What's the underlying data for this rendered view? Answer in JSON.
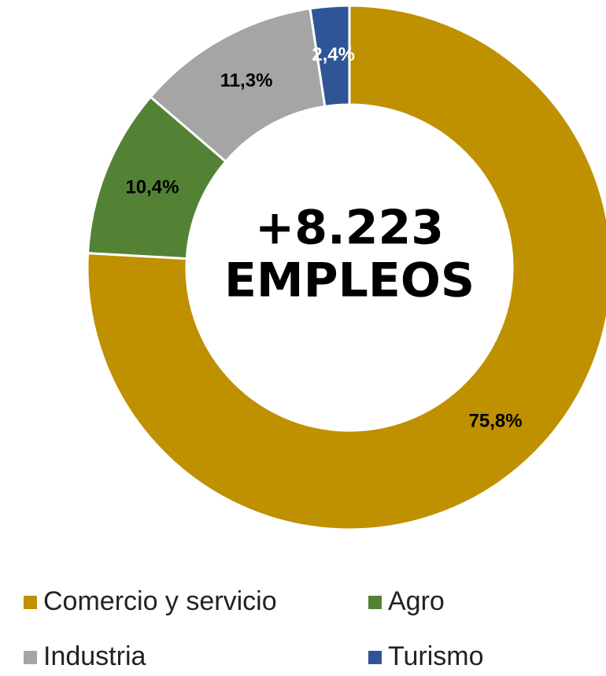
{
  "chart_data": {
    "type": "donut",
    "categories": [
      "Comercio y servicio",
      "Agro",
      "Industria",
      "Turismo"
    ],
    "values": [
      75.8,
      10.4,
      11.3,
      2.4
    ],
    "value_labels": [
      "75,8%",
      "10,4%",
      "11,3%",
      "2,4%"
    ],
    "colors": [
      "#bf9000",
      "#548235",
      "#a5a5a5",
      "#2f5597"
    ],
    "annotations": [
      "+8.223",
      "EMPLEOS"
    ]
  }
}
